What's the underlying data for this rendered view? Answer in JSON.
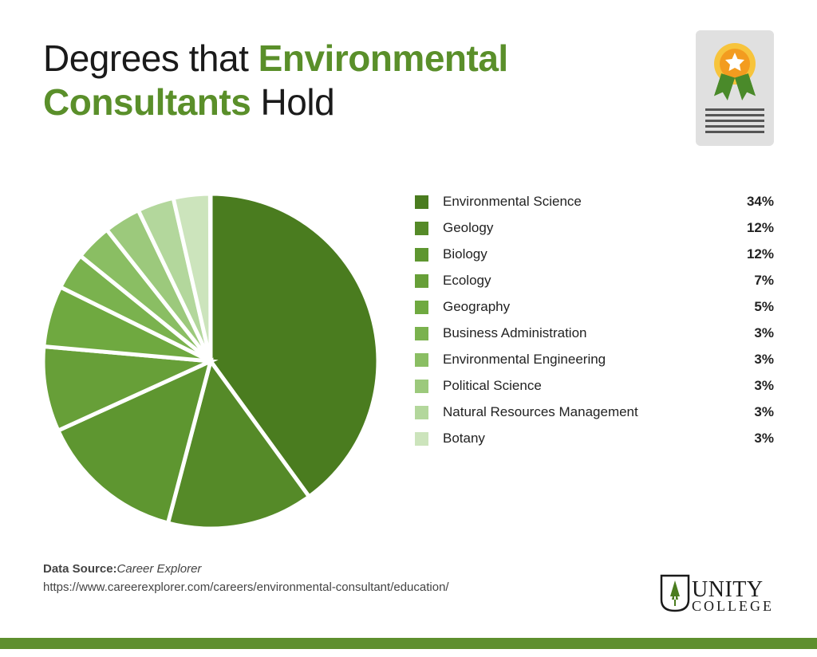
{
  "title": {
    "part1": "Degrees that ",
    "accent": "Environmental Consultants",
    "part2": " Hold",
    "color_normal": "#1a1a1a",
    "color_accent": "#5a8f2a",
    "fontsize": 46
  },
  "cert_icon": {
    "box_bg": "#e0e0e0",
    "medal_outer": "#f7c43c",
    "medal_inner": "#f39c1f",
    "star_color": "#ffffff",
    "ribbon_color": "#4a8a2a",
    "line_color": "#555555"
  },
  "chart": {
    "type": "pie",
    "radius": 210,
    "gap_color": "#ffffff",
    "gap_width": 5,
    "slices": [
      {
        "label": "Environmental Science",
        "pct": 34,
        "share": 40.0,
        "color": "#4a7c1f"
      },
      {
        "label": "Geology",
        "pct": 12,
        "share": 14.1,
        "color": "#558a28"
      },
      {
        "label": "Biology",
        "pct": 12,
        "share": 14.1,
        "color": "#5e9630"
      },
      {
        "label": "Ecology",
        "pct": 7,
        "share": 8.2,
        "color": "#679f38"
      },
      {
        "label": "Geography",
        "pct": 5,
        "share": 5.9,
        "color": "#6fa940"
      },
      {
        "label": "Business Administration",
        "pct": 3,
        "share": 3.53,
        "color": "#7ab24e"
      },
      {
        "label": "Environmental Engineering",
        "pct": 3,
        "share": 3.53,
        "color": "#8abe63"
      },
      {
        "label": "Political Science",
        "pct": 3,
        "share": 3.53,
        "color": "#9cc97c"
      },
      {
        "label": "Natural Resources Management",
        "pct": 3,
        "share": 3.53,
        "color": "#b3d79c"
      },
      {
        "label": "Botany",
        "pct": 3,
        "share": 3.53,
        "color": "#cce4bc"
      }
    ]
  },
  "legend": {
    "fontsize": 17,
    "swatch_size": 17,
    "row_gap": 13
  },
  "footer": {
    "label": "Data Source:",
    "source_name": "Career Explorer",
    "url": "https://www.careerexplorer.com/careers/environmental-consultant/education/",
    "fontsize": 15,
    "color": "#444444"
  },
  "logo": {
    "line1": "UNITY",
    "line2": "COLLEGE",
    "tree_color": "#4a7c1f",
    "shield_stroke": "#1a1a1a"
  },
  "bottom_bar": {
    "color": "#5e8f2e",
    "height": 14
  }
}
